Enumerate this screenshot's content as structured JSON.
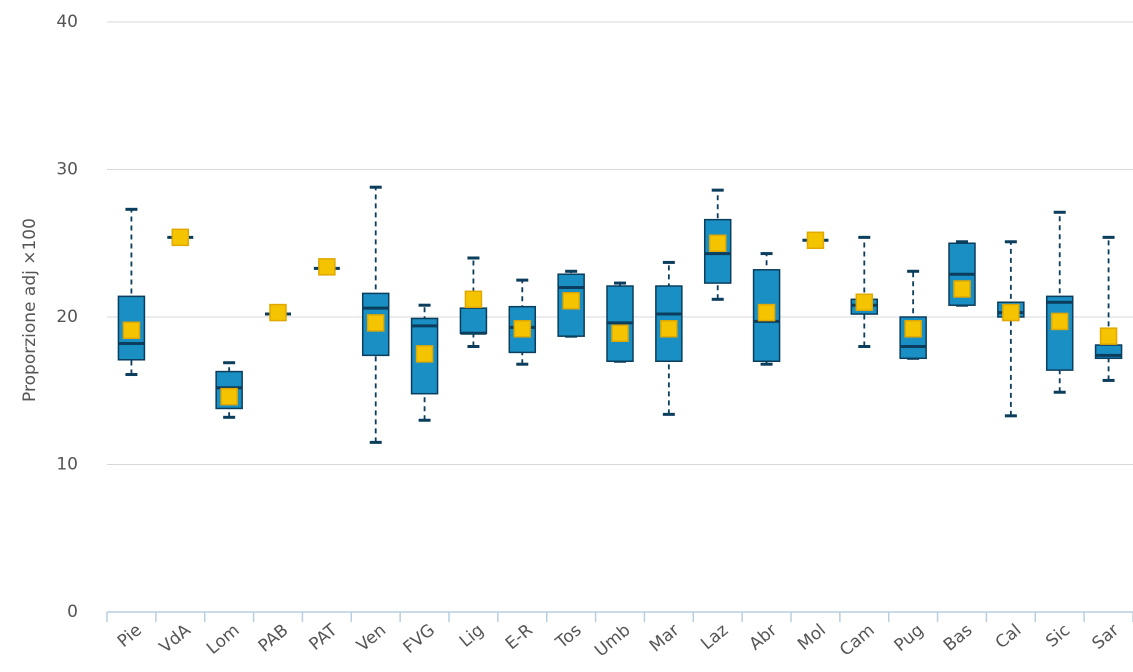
{
  "chart_data": {
    "type": "boxplot",
    "y_label": "Proporzione adj ×100",
    "categories": [
      "Pie",
      "VdA",
      "Lom",
      "PAB",
      "PAT",
      "Ven",
      "FVG",
      "Lig",
      "E-R",
      "Tos",
      "Umb",
      "Mar",
      "Laz",
      "Abr",
      "Mol",
      "Cam",
      "Pug",
      "Bas",
      "Cal",
      "Sic",
      "Sar"
    ],
    "min": [
      16.1,
      25.4,
      13.2,
      20.2,
      23.3,
      11.5,
      13.0,
      18.0,
      16.8,
      18.7,
      17.0,
      13.4,
      21.2,
      16.8,
      25.2,
      18.0,
      17.2,
      20.8,
      13.3,
      14.9,
      15.7
    ],
    "q1": [
      17.1,
      25.4,
      13.8,
      20.2,
      23.3,
      17.4,
      14.8,
      18.9,
      17.6,
      18.7,
      17.0,
      17.0,
      22.3,
      17.0,
      25.2,
      20.2,
      17.2,
      20.8,
      20.0,
      16.4,
      17.2
    ],
    "median": [
      18.2,
      25.4,
      15.2,
      20.2,
      23.3,
      20.6,
      19.4,
      18.9,
      19.3,
      22.0,
      19.6,
      20.2,
      24.3,
      19.7,
      25.2,
      20.8,
      18.0,
      22.9,
      20.3,
      21.0,
      17.4
    ],
    "q3": [
      21.4,
      25.4,
      16.3,
      20.2,
      23.3,
      21.6,
      19.9,
      20.6,
      20.7,
      22.9,
      22.1,
      22.1,
      26.6,
      23.2,
      25.2,
      21.2,
      20.0,
      25.0,
      21.0,
      21.4,
      18.1
    ],
    "max": [
      27.3,
      25.4,
      16.9,
      20.2,
      23.3,
      28.8,
      20.8,
      24.0,
      22.5,
      23.1,
      22.3,
      23.7,
      28.6,
      24.3,
      25.2,
      25.4,
      23.1,
      25.1,
      25.1,
      27.1,
      25.4
    ],
    "mean": [
      19.1,
      25.4,
      14.6,
      20.3,
      23.4,
      19.6,
      17.5,
      21.2,
      19.2,
      21.1,
      18.9,
      19.2,
      25.0,
      20.3,
      25.2,
      21.0,
      19.2,
      21.9,
      20.3,
      19.7,
      18.7
    ],
    "box_color": "#1a8fc4",
    "line_color": "#0b3d5c",
    "mean_color": "#f5c400",
    "ylim": [
      0,
      40
    ],
    "yticks": [
      0,
      10,
      20,
      30,
      40
    ],
    "grid": true
  }
}
